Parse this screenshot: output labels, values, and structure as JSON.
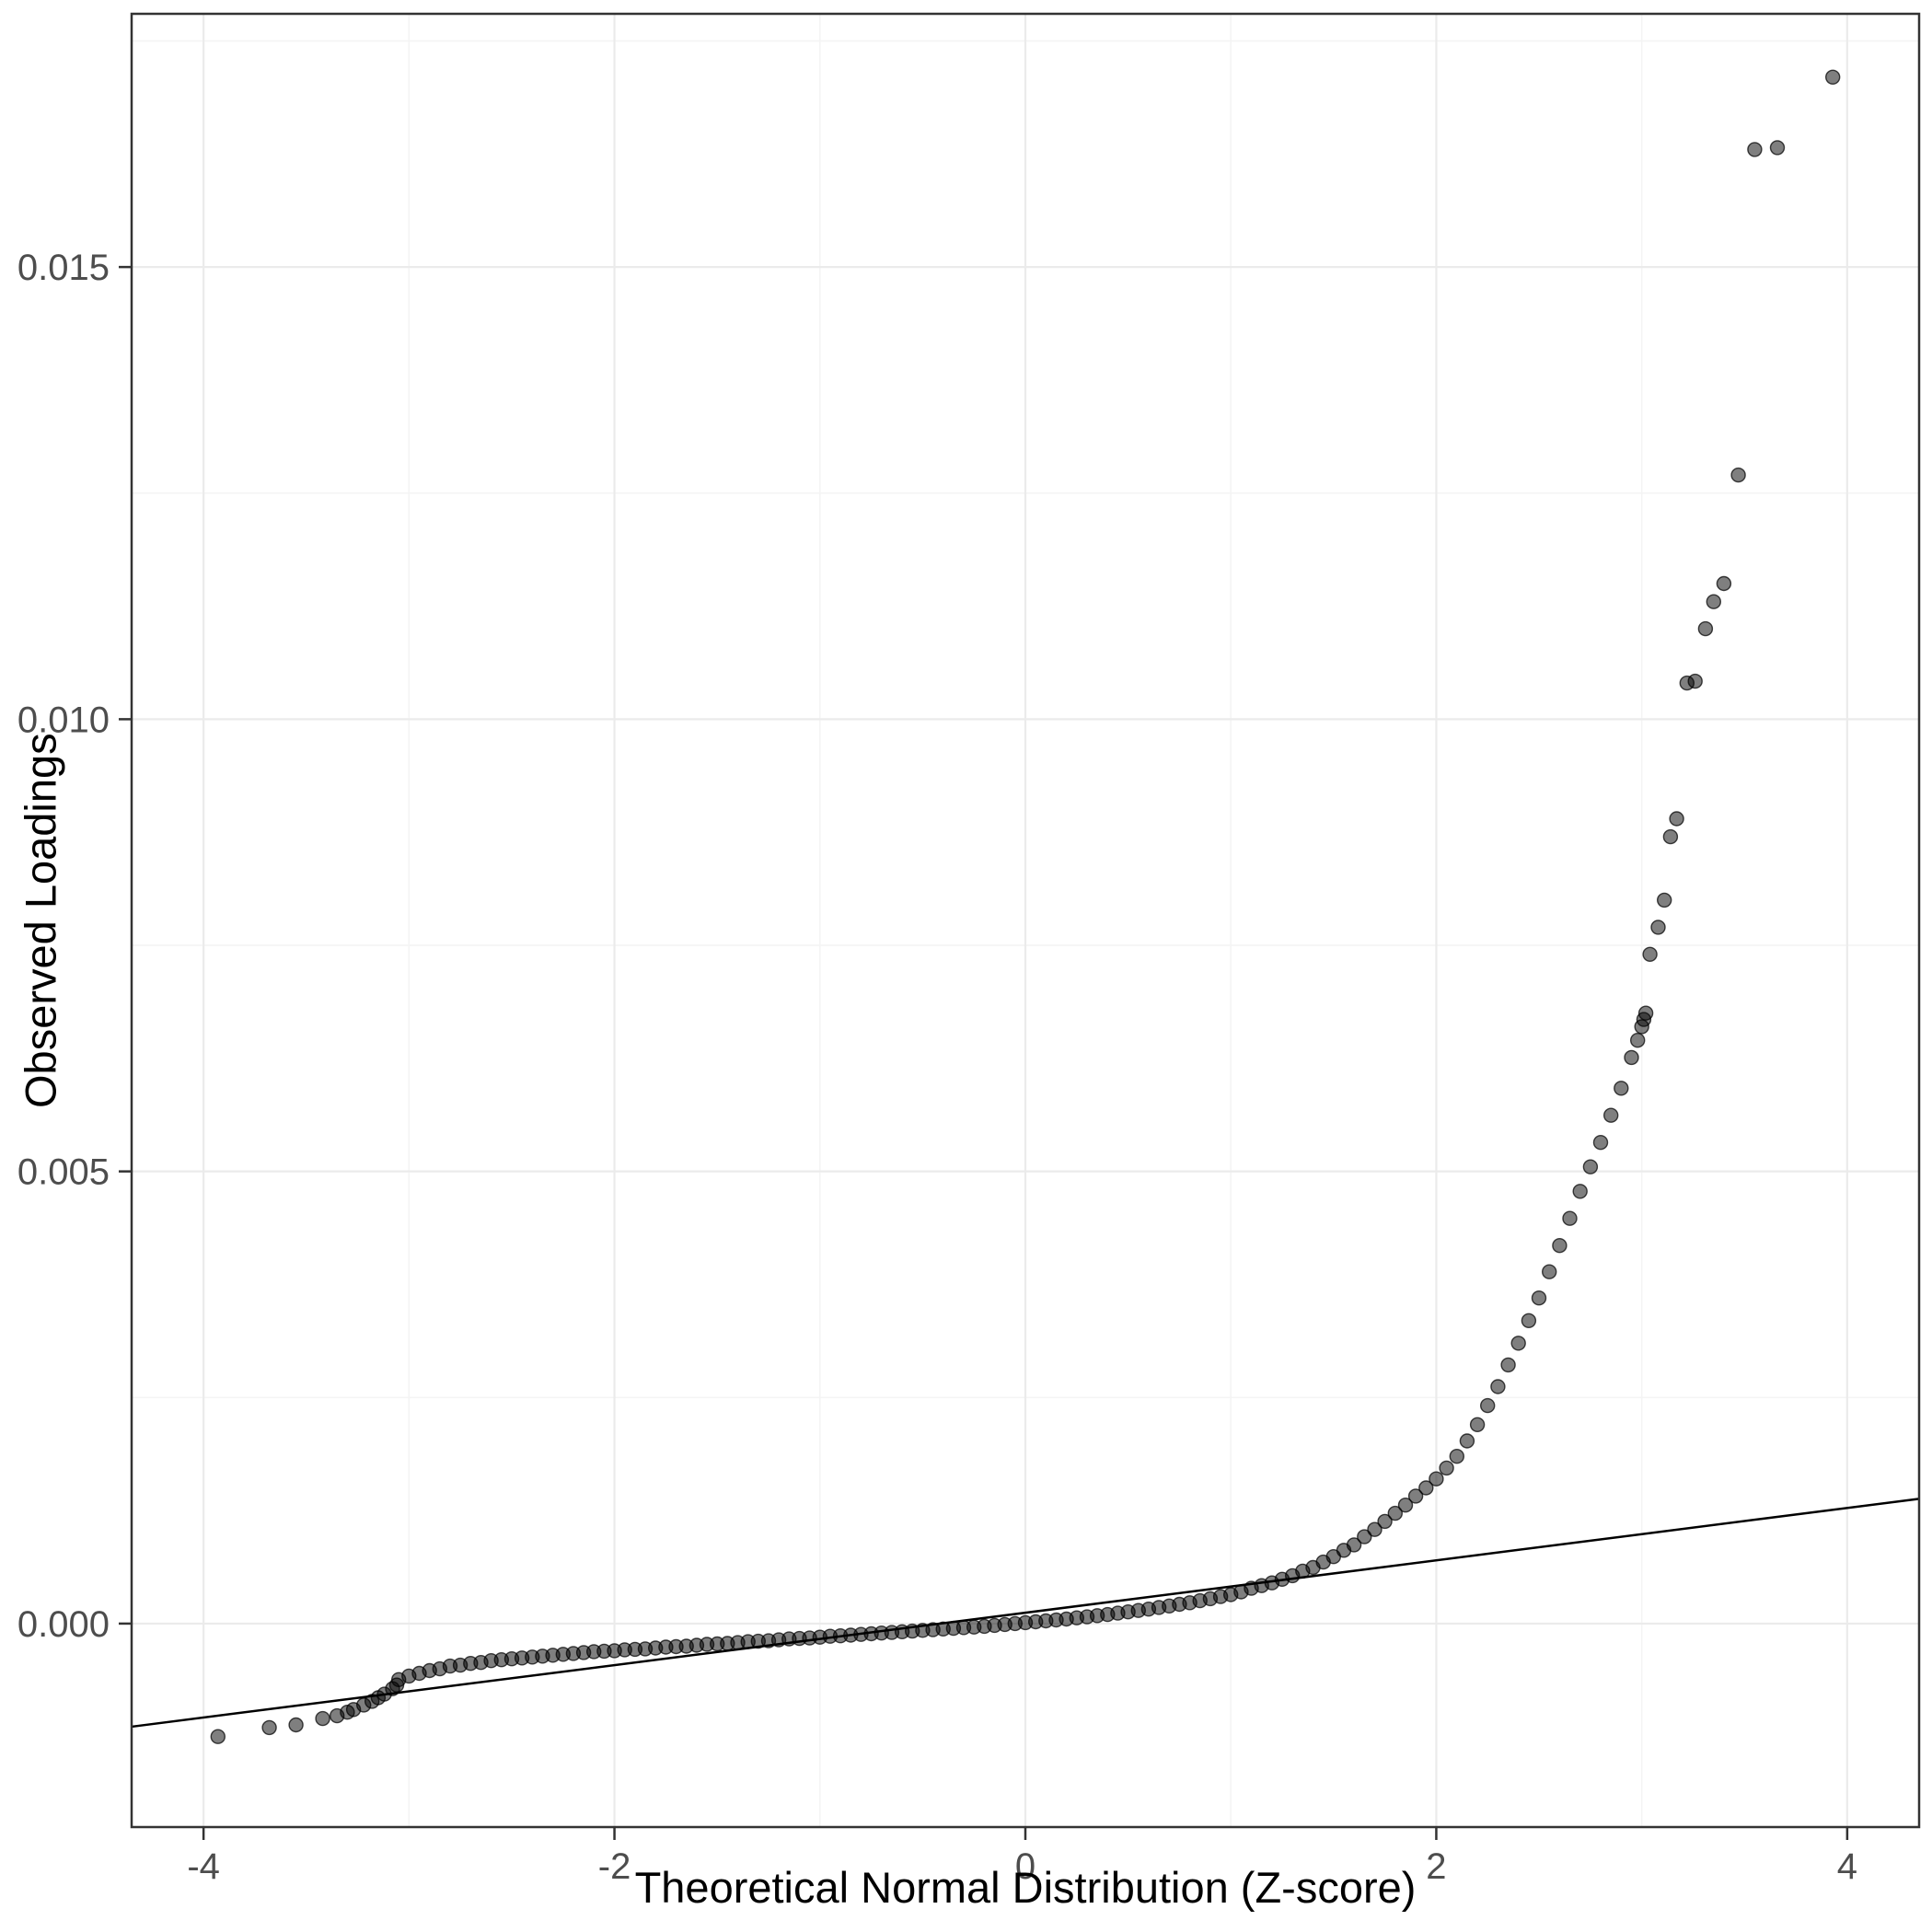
{
  "chart_data": {
    "type": "scatter",
    "title": "",
    "xlabel": "Theoretical Normal Distribution (Z-score)",
    "ylabel": "Observed Loadings",
    "xlim": [
      -4.35,
      4.35
    ],
    "ylim": [
      -0.00225,
      0.0178
    ],
    "x_ticks": [
      -4,
      -2,
      0,
      2,
      4
    ],
    "x_tick_labels": [
      "-4",
      "-2",
      "0",
      "2",
      "4"
    ],
    "x_minor_ticks": [
      -3,
      -1,
      1,
      3
    ],
    "y_ticks": [
      0,
      0.005,
      0.01,
      0.015
    ],
    "y_tick_labels": [
      "0.000",
      "0.005",
      "0.010",
      "0.015"
    ],
    "y_minor_ticks": [
      0.0025,
      0.0075,
      0.0125,
      0.0175
    ],
    "grid": true,
    "legend": false,
    "point_color": "#000000",
    "point_opacity": 0.5,
    "point_stroke_opacity": 0.72,
    "point_radius_px": 7.5,
    "qq_line": {
      "x1": -4.35,
      "y1": -0.00114,
      "x2": 4.35,
      "y2": 0.00138,
      "color": "#000000",
      "width": 2.5
    },
    "theme": {
      "panel_bg": "#FFFFFF",
      "grid_major": "#EBEBEB",
      "grid_minor": "#F4F4F4",
      "border": "#333333",
      "tick": "#333333",
      "tick_label": "#4D4D4D"
    },
    "points": [
      [
        -3.93,
        -0.00125
      ],
      [
        -3.68,
        -0.00115
      ],
      [
        -3.55,
        -0.00112
      ],
      [
        -3.42,
        -0.00105
      ],
      [
        -3.35,
        -0.00102
      ],
      [
        -3.3,
        -0.00098
      ],
      [
        -3.27,
        -0.00095
      ],
      [
        -3.22,
        -0.0009
      ],
      [
        -3.18,
        -0.00086
      ],
      [
        -3.15,
        -0.00082
      ],
      [
        -3.12,
        -0.00078
      ],
      [
        -3.08,
        -0.00072
      ],
      [
        -3.06,
        -0.00068
      ],
      [
        -3.05,
        -0.00062
      ],
      [
        -3.0,
        -0.00058
      ],
      [
        -2.95,
        -0.00055
      ],
      [
        -2.9,
        -0.00052
      ],
      [
        -2.85,
        -0.0005
      ],
      [
        -2.8,
        -0.00047
      ],
      [
        -2.75,
        -0.00046
      ],
      [
        -2.7,
        -0.00044
      ],
      [
        -2.65,
        -0.00043
      ],
      [
        -2.6,
        -0.00041
      ],
      [
        -2.55,
        -0.0004
      ],
      [
        -2.5,
        -0.00039
      ],
      [
        -2.45,
        -0.00038
      ],
      [
        -2.4,
        -0.00037
      ],
      [
        -2.35,
        -0.00036
      ],
      [
        -2.3,
        -0.00035
      ],
      [
        -2.25,
        -0.00034
      ],
      [
        -2.2,
        -0.00033
      ],
      [
        -2.15,
        -0.00032
      ],
      [
        -2.1,
        -0.00031
      ],
      [
        -2.05,
        -0.000305
      ],
      [
        -2.0,
        -0.0003
      ],
      [
        -1.95,
        -0.00029
      ],
      [
        -1.9,
        -0.000285
      ],
      [
        -1.85,
        -0.00028
      ],
      [
        -1.8,
        -0.00027
      ],
      [
        -1.75,
        -0.00026
      ],
      [
        -1.7,
        -0.000255
      ],
      [
        -1.65,
        -0.00025
      ],
      [
        -1.6,
        -0.00024
      ],
      [
        -1.55,
        -0.00023
      ],
      [
        -1.5,
        -0.000225
      ],
      [
        -1.45,
        -0.00022
      ],
      [
        -1.4,
        -0.00021
      ],
      [
        -1.35,
        -0.0002
      ],
      [
        -1.3,
        -0.000195
      ],
      [
        -1.25,
        -0.00019
      ],
      [
        -1.2,
        -0.00018
      ],
      [
        -1.15,
        -0.00017
      ],
      [
        -1.1,
        -0.000165
      ],
      [
        -1.05,
        -0.00016
      ],
      [
        -1.0,
        -0.00015
      ],
      [
        -0.95,
        -0.00014
      ],
      [
        -0.9,
        -0.000135
      ],
      [
        -0.85,
        -0.000128
      ],
      [
        -0.8,
        -0.00012
      ],
      [
        -0.75,
        -0.000113
      ],
      [
        -0.7,
        -0.000105
      ],
      [
        -0.65,
        -9.8e-05
      ],
      [
        -0.6,
        -9e-05
      ],
      [
        -0.55,
        -8.3e-05
      ],
      [
        -0.5,
        -7.5e-05
      ],
      [
        -0.45,
        -6.8e-05
      ],
      [
        -0.4,
        -6e-05
      ],
      [
        -0.35,
        -5.3e-05
      ],
      [
        -0.3,
        -4.5e-05
      ],
      [
        -0.25,
        -3.8e-05
      ],
      [
        -0.2,
        -3e-05
      ],
      [
        -0.15,
        -2e-05
      ],
      [
        -0.1,
        -1e-05
      ],
      [
        -0.05,
        0.0
      ],
      [
        0.0,
        1e-05
      ],
      [
        0.05,
        2e-05
      ],
      [
        0.1,
        3e-05
      ],
      [
        0.15,
        4e-05
      ],
      [
        0.2,
        5e-05
      ],
      [
        0.25,
        6.3e-05
      ],
      [
        0.3,
        7.5e-05
      ],
      [
        0.35,
        8.8e-05
      ],
      [
        0.4,
        0.0001
      ],
      [
        0.45,
        0.000115
      ],
      [
        0.5,
        0.00013
      ],
      [
        0.55,
        0.000145
      ],
      [
        0.6,
        0.00016
      ],
      [
        0.65,
        0.000178
      ],
      [
        0.7,
        0.000195
      ],
      [
        0.75,
        0.000213
      ],
      [
        0.8,
        0.00023
      ],
      [
        0.85,
        0.000253
      ],
      [
        0.9,
        0.000275
      ],
      [
        0.95,
        0.000298
      ],
      [
        1.0,
        0.00032
      ],
      [
        1.05,
        0.00035
      ],
      [
        1.1,
        0.00039
      ],
      [
        1.15,
        0.00042
      ],
      [
        1.2,
        0.00045
      ],
      [
        1.25,
        0.00049
      ],
      [
        1.3,
        0.00053
      ],
      [
        1.35,
        0.00058
      ],
      [
        1.4,
        0.00062
      ],
      [
        1.45,
        0.00068
      ],
      [
        1.5,
        0.00074
      ],
      [
        1.55,
        0.00081
      ],
      [
        1.6,
        0.00087
      ],
      [
        1.65,
        0.00096
      ],
      [
        1.7,
        0.00104
      ],
      [
        1.75,
        0.00113
      ],
      [
        1.8,
        0.00122
      ],
      [
        1.85,
        0.00131
      ],
      [
        1.9,
        0.00141
      ],
      [
        1.95,
        0.0015
      ],
      [
        2.0,
        0.0016
      ],
      [
        2.05,
        0.00172
      ],
      [
        2.1,
        0.00185
      ],
      [
        2.15,
        0.00202
      ],
      [
        2.2,
        0.0022
      ],
      [
        2.25,
        0.00241
      ],
      [
        2.3,
        0.00262
      ],
      [
        2.35,
        0.00286
      ],
      [
        2.4,
        0.0031
      ],
      [
        2.45,
        0.00335
      ],
      [
        2.5,
        0.0036
      ],
      [
        2.55,
        0.00389
      ],
      [
        2.6,
        0.00418
      ],
      [
        2.65,
        0.00448
      ],
      [
        2.7,
        0.00478
      ],
      [
        2.75,
        0.00505
      ],
      [
        2.8,
        0.00532
      ],
      [
        2.85,
        0.00562
      ],
      [
        2.9,
        0.00592
      ],
      [
        2.95,
        0.00626
      ],
      [
        2.98,
        0.00645
      ],
      [
        3.0,
        0.0066
      ],
      [
        3.01,
        0.00668
      ],
      [
        3.02,
        0.00675
      ],
      [
        3.04,
        0.0074
      ],
      [
        3.08,
        0.0077
      ],
      [
        3.11,
        0.008
      ],
      [
        3.14,
        0.0087
      ],
      [
        3.17,
        0.0089
      ],
      [
        3.22,
        0.0104
      ],
      [
        3.26,
        0.01042
      ],
      [
        3.31,
        0.011
      ],
      [
        3.35,
        0.0113
      ],
      [
        3.4,
        0.0115
      ],
      [
        3.47,
        0.0127
      ],
      [
        3.55,
        0.0163
      ],
      [
        3.66,
        0.01632
      ],
      [
        3.93,
        0.0171
      ]
    ]
  }
}
